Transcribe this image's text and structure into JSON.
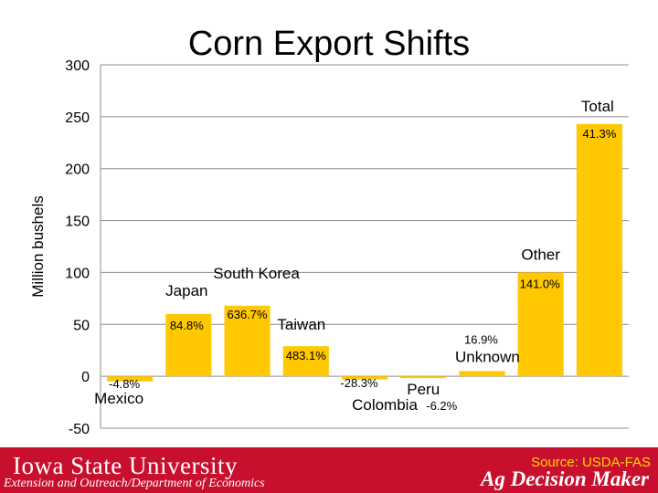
{
  "chart_data": {
    "type": "bar",
    "title": "Corn Export Shifts",
    "ylabel": "Million bushels",
    "xlabel": "",
    "ylim": [
      -50,
      300
    ],
    "yticks": [
      300,
      250,
      200,
      150,
      100,
      50,
      0,
      -50
    ],
    "grid": true,
    "bar_color": "#ffc800",
    "categories": [
      "Mexico",
      "Japan",
      "South Korea",
      "Taiwan",
      "Colombia",
      "Peru",
      "Unknown",
      "Other",
      "Total"
    ],
    "values": [
      -5,
      60,
      68,
      29,
      -3,
      -1,
      5,
      100,
      243
    ],
    "data_labels": [
      "-4.8%",
      "84.8%",
      "636.7%",
      "483.1%",
      "-28.3%",
      "-6.2%",
      "16.9%",
      "141.0%",
      "41.3%"
    ]
  },
  "source": "Source: USDA-FAS",
  "footer": {
    "university": "Iowa State University",
    "subtitle": "Extension and Outreach/Department of Economics",
    "brand": "Ag Decision Maker"
  }
}
